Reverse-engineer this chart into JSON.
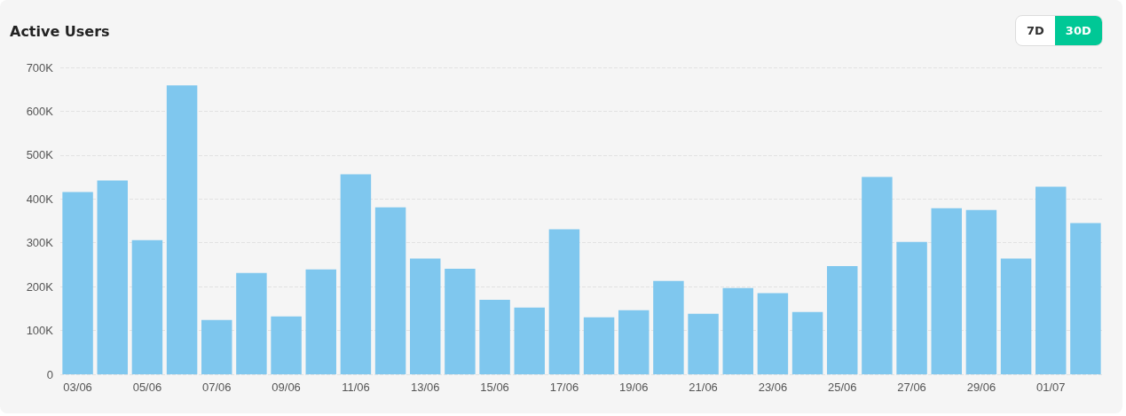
{
  "chart_data": {
    "type": "bar",
    "title": "Active Users",
    "categories": [
      "03/06",
      null,
      "05/06",
      null,
      "07/06",
      null,
      "09/06",
      null,
      "11/06",
      null,
      "13/06",
      null,
      "15/06",
      null,
      "17/06",
      null,
      "19/06",
      null,
      "21/06",
      null,
      "23/06",
      null,
      "25/06",
      null,
      "27/06",
      null,
      "29/06",
      null,
      "01/07",
      null
    ],
    "values": [
      416000,
      442000,
      306000,
      659000,
      124000,
      231000,
      132000,
      239000,
      456000,
      381000,
      264000,
      241000,
      170000,
      152000,
      331000,
      130000,
      146000,
      213000,
      138000,
      197000,
      185000,
      142000,
      247000,
      450000,
      302000,
      379000,
      375000,
      264000,
      428000,
      345000
    ],
    "color": "#7fc7ee",
    "ylim": [
      0,
      700000
    ],
    "yticks": [
      0,
      {
        "value": 100000,
        "label": "100K"
      },
      {
        "value": 200000,
        "label": "200K"
      },
      {
        "value": 300000,
        "label": "300K"
      },
      {
        "value": 400000,
        "label": "400K"
      },
      {
        "value": 500000,
        "label": "500K"
      },
      {
        "value": 600000,
        "label": "600K"
      },
      {
        "value": 700000,
        "label": "700K"
      }
    ],
    "grid": "y",
    "annotations": [
      "7D",
      "30D"
    ]
  }
}
